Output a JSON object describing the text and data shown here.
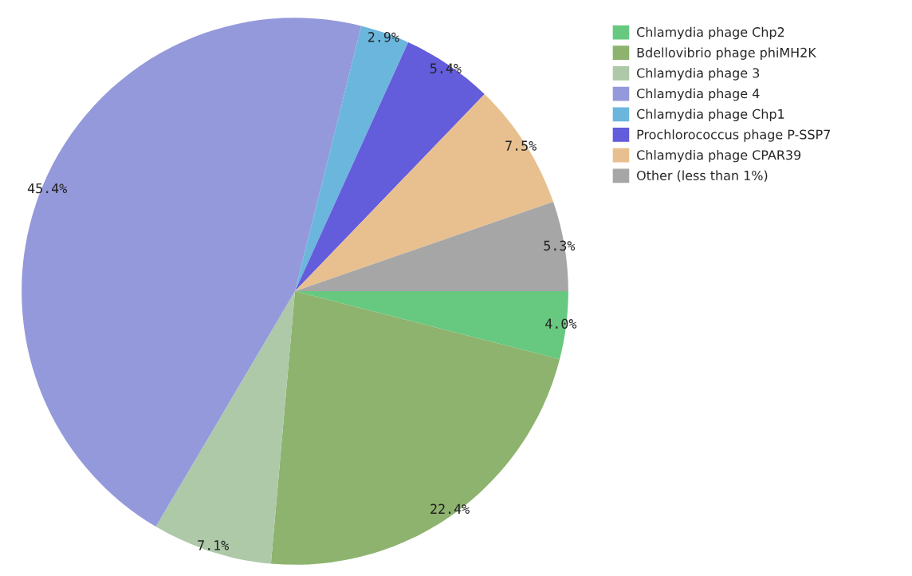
{
  "chart_data": {
    "type": "pie",
    "categories": [
      "Chlamydia phage Chp2",
      "Bdellovibrio phage phiMH2K",
      "Chlamydia phage 3",
      "Chlamydia phage 4",
      "Chlamydia phage Chp1",
      "Prochlorococcus phage P-SSP7",
      "Chlamydia phage CPAR39",
      "Other (less than 1%)"
    ],
    "values": [
      4.0,
      22.4,
      7.1,
      45.4,
      2.9,
      5.4,
      7.5,
      5.3
    ],
    "colors": [
      "#66c97f",
      "#8db36e",
      "#adc9a8",
      "#9499db",
      "#6bb6dd",
      "#635cdb",
      "#e8c090",
      "#a6a6a6"
    ],
    "value_labels": [
      "4.0%",
      "22.4%",
      "7.1%",
      "45.4%",
      "2.9%",
      "5.4%",
      "7.5%",
      "5.3%"
    ],
    "legend": "top right"
  }
}
